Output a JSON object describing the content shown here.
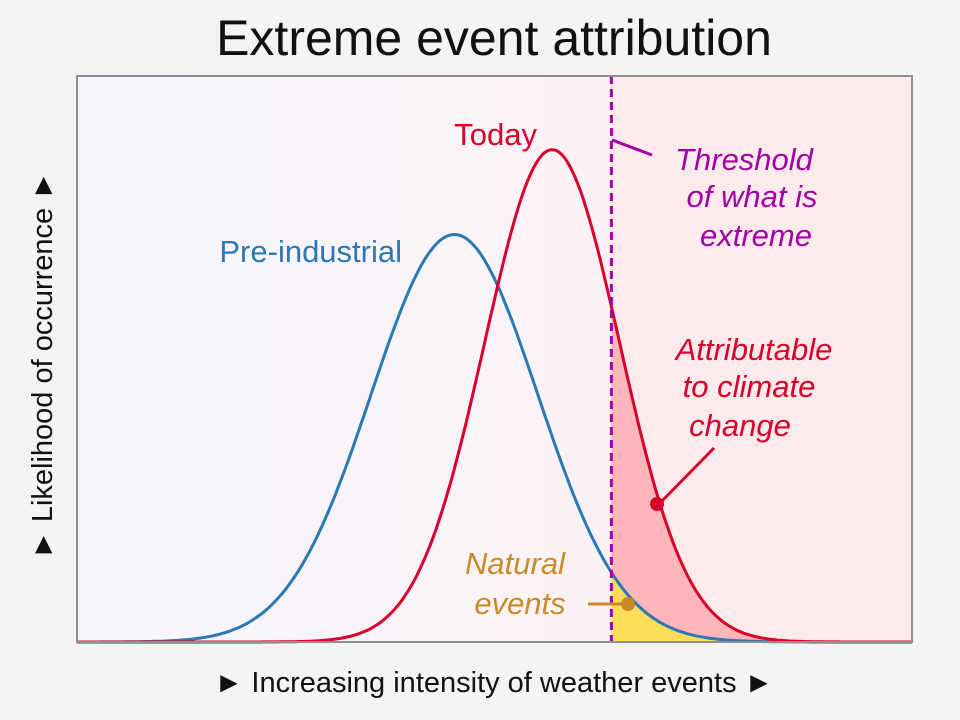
{
  "title": "Extreme event attribution",
  "x_axis_label": "► Increasing intensity of weather events ►",
  "y_axis_label": "► Likelihood of occurrence ►",
  "colors": {
    "pre_industrial": "#2a78b5",
    "today": "#d9002b",
    "threshold": "#a200a8",
    "natural": "#cc8a26",
    "attributable_fill": "#ffb6bb",
    "natural_fill": "#ffdc5a",
    "plot_border": "#8f8f8f"
  },
  "labels": {
    "pre_industrial": "Pre-industrial",
    "today": "Today",
    "threshold": [
      "Threshold",
      "of what is",
      "extreme"
    ],
    "attributable": [
      "Attributable",
      "to climate",
      "change"
    ],
    "natural": [
      "Natural",
      "events"
    ]
  },
  "chart_data": {
    "type": "line",
    "title": "Extreme event attribution",
    "xlabel": "► Increasing intensity of weather events ►",
    "ylabel": "► Likelihood of occurrence ►",
    "xlim": [
      0,
      1
    ],
    "ylim": [
      0,
      1
    ],
    "threshold_x": 0.64,
    "series": [
      {
        "name": "Pre-industrial",
        "distribution": "normal",
        "mean": 0.452,
        "sd": 0.1,
        "peak": 0.72
      },
      {
        "name": "Today",
        "distribution": "normal",
        "mean": 0.569,
        "sd": 0.081,
        "peak": 0.87
      }
    ],
    "shaded_regions": [
      {
        "name": "Natural events",
        "from_x": 0.64,
        "under": "Pre-industrial"
      },
      {
        "name": "Attributable to climate change",
        "from_x": 0.64,
        "between": [
          "Pre-industrial",
          "Today"
        ]
      }
    ],
    "grid": false
  }
}
